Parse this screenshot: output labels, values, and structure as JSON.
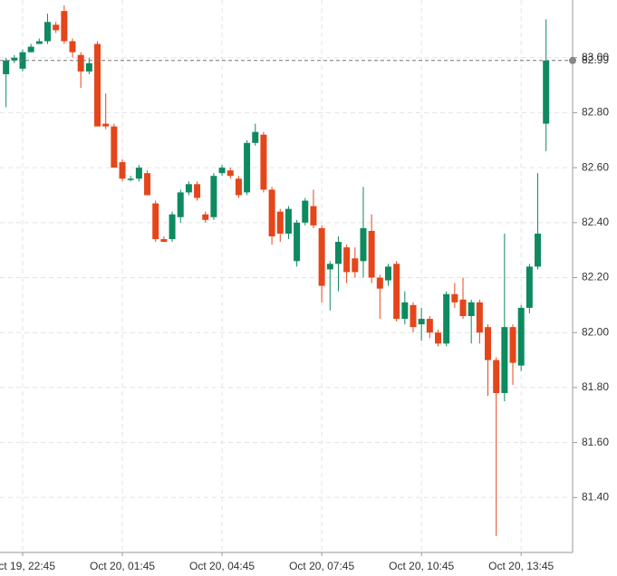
{
  "chart_data": {
    "type": "candlestick",
    "categories": [
      null,
      null,
      "Oct 19, 22:45",
      null,
      null,
      null,
      null,
      null,
      null,
      null,
      null,
      null,
      null,
      null,
      "Oct 20, 01:45",
      null,
      null,
      null,
      null,
      null,
      null,
      null,
      null,
      null,
      null,
      null,
      "Oct 20, 04:45",
      null,
      null,
      null,
      null,
      null,
      null,
      null,
      null,
      null,
      null,
      null,
      "Oct 20, 07:45",
      null,
      null,
      null,
      null,
      null,
      null,
      null,
      null,
      null,
      null,
      null,
      "Oct 20, 10:45",
      null,
      null,
      null,
      null,
      null,
      null,
      null,
      null,
      null,
      null,
      null,
      "Oct 20, 13:45",
      null,
      null,
      null
    ],
    "open": [
      82.94,
      82.99,
      82.96,
      83.02,
      83.05,
      83.06,
      83.12,
      83.17,
      83.06,
      83.01,
      82.95,
      83.05,
      82.76,
      82.75,
      82.62,
      82.56,
      82.56,
      82.58,
      82.47,
      82.34,
      82.34,
      82.42,
      82.51,
      82.54,
      82.43,
      82.42,
      82.58,
      82.59,
      82.56,
      82.51,
      82.69,
      82.72,
      82.52,
      82.44,
      82.36,
      82.26,
      82.4,
      82.46,
      82.38,
      82.23,
      82.25,
      82.31,
      82.27,
      82.26,
      82.37,
      82.2,
      82.19,
      82.25,
      82.05,
      82.1,
      82.03,
      82.05,
      82.0,
      81.96,
      82.14,
      82.12,
      82.06,
      82.11,
      82.02,
      81.9,
      81.78,
      82.02,
      81.88,
      82.09,
      82.24,
      82.76
    ],
    "high": [
      83.0,
      83.01,
      83.03,
      83.05,
      83.07,
      83.16,
      83.13,
      83.19,
      83.07,
      83.02,
      83.0,
      83.06,
      82.87,
      82.76,
      82.63,
      82.57,
      82.61,
      82.59,
      82.48,
      82.35,
      82.44,
      82.52,
      82.55,
      82.55,
      82.44,
      82.58,
      82.61,
      82.6,
      82.57,
      82.7,
      82.76,
      82.73,
      82.53,
      82.45,
      82.46,
      82.41,
      82.49,
      82.52,
      82.39,
      82.26,
      82.35,
      82.32,
      82.31,
      82.53,
      82.43,
      82.21,
      82.25,
      82.26,
      82.15,
      82.11,
      82.09,
      82.06,
      82.01,
      82.15,
      82.18,
      82.2,
      82.12,
      82.12,
      82.03,
      81.91,
      82.36,
      82.03,
      82.1,
      82.25,
      82.58,
      83.14
    ],
    "low": [
      82.82,
      82.98,
      82.95,
      83.02,
      83.05,
      83.05,
      83.09,
      83.05,
      83.0,
      82.89,
      82.94,
      82.75,
      82.74,
      82.6,
      82.55,
      82.55,
      82.55,
      82.5,
      82.33,
      82.33,
      82.33,
      82.4,
      82.5,
      82.48,
      82.4,
      82.41,
      82.57,
      82.56,
      82.49,
      82.5,
      82.68,
      82.51,
      82.32,
      82.33,
      82.34,
      82.24,
      82.39,
      82.38,
      82.11,
      82.08,
      82.15,
      82.18,
      82.2,
      82.2,
      82.18,
      82.05,
      82.17,
      82.04,
      82.03,
      82.0,
      81.97,
      81.98,
      81.95,
      81.95,
      82.09,
      82.05,
      81.96,
      81.96,
      81.77,
      81.26,
      81.75,
      81.81,
      81.86,
      82.07,
      82.23,
      82.66
    ],
    "close": [
      82.99,
      83.0,
      83.02,
      83.04,
      83.06,
      83.13,
      83.1,
      83.06,
      83.02,
      82.95,
      82.98,
      82.75,
      82.75,
      82.6,
      82.56,
      82.56,
      82.6,
      82.5,
      82.34,
      82.33,
      82.43,
      82.51,
      82.54,
      82.49,
      82.41,
      82.57,
      82.6,
      82.57,
      82.5,
      82.69,
      82.73,
      82.52,
      82.35,
      82.36,
      82.45,
      82.4,
      82.48,
      82.39,
      82.17,
      82.25,
      82.33,
      82.22,
      82.22,
      82.38,
      82.2,
      82.16,
      82.24,
      82.05,
      82.11,
      82.02,
      82.05,
      82.0,
      81.96,
      82.14,
      82.11,
      82.06,
      82.11,
      82.0,
      81.9,
      81.78,
      82.02,
      81.89,
      82.09,
      82.24,
      82.36,
      82.99
    ],
    "up_color": "#0e8a5f",
    "down_color": "#e5451a",
    "current_price": 82.99,
    "ylim": [
      81.2,
      83.21
    ],
    "yticks": [
      {
        "value": 81.4,
        "label": "81.40"
      },
      {
        "value": 81.6,
        "label": "81.60"
      },
      {
        "value": 81.8,
        "label": "81.80"
      },
      {
        "value": 82,
        "label": "82.00"
      },
      {
        "value": 82.2,
        "label": "82.20"
      },
      {
        "value": 82.4,
        "label": "82.40"
      },
      {
        "value": 82.6,
        "label": "82.60"
      },
      {
        "value": 82.8,
        "label": "82.80"
      },
      {
        "value": 83,
        "label": "83.00"
      }
    ],
    "grid": true
  }
}
